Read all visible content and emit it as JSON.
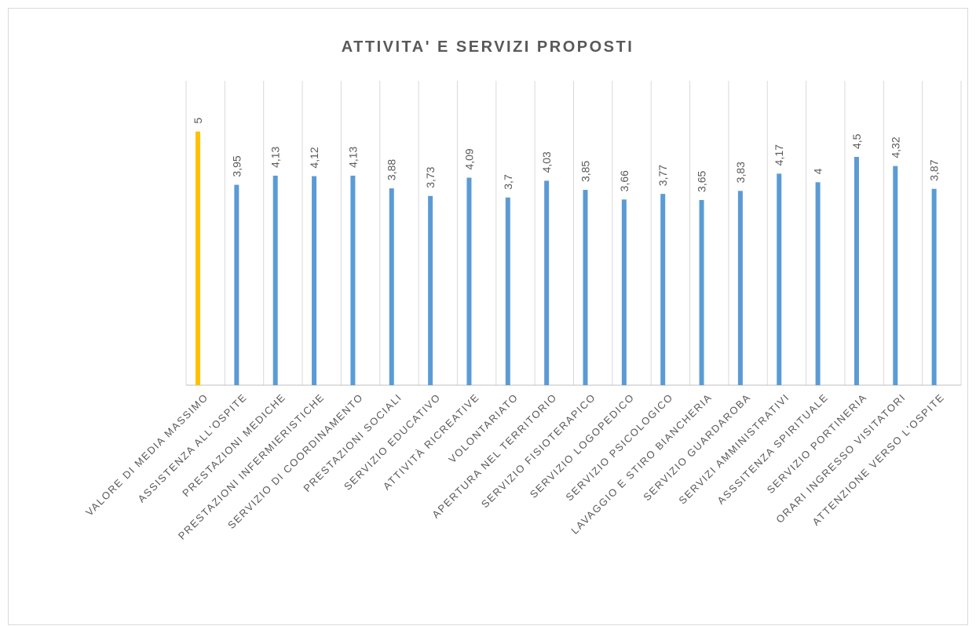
{
  "chart_data": {
    "type": "bar",
    "title": "ATTIVITA' E SERVIZI PROPOSTI",
    "categories": [
      "VALORE DI MEDIA MASSIMO",
      "ASSISTENZA ALL'OSPITE",
      "PRESTAZIONI MEDICHE",
      "PRESTAZIONI INFERMIERISTICHE",
      "SERVIZIO DI COORDINAMENTO",
      "PRESTAZIONI SOCIALI",
      "SERVIZIO EDUCATIVO",
      "ATTIVITÀ RICREATIVE",
      "VOLONTARIATO",
      "APERTURA NEL TERRITORIO",
      "SERVIZIO FISIOTERAPICO",
      "SERVIZIO LOGOPEDICO",
      "SERVIZIO PSICOLOGICO",
      "LAVAGGIO E STIRO BIANCHERIA",
      "SERVIZIO GUARDAROBA",
      "SERVIZI AMMINISTRATIVI",
      "ASSSITENZA SPIRITUALE",
      "SERVIZIO PORTINERIA",
      "ORARI INGRESSO VISITATORI",
      "ATTENZIONE VERSO L'OSPITE"
    ],
    "values": [
      5,
      3.95,
      4.13,
      4.12,
      4.13,
      3.88,
      3.73,
      4.09,
      3.7,
      4.03,
      3.85,
      3.66,
      3.77,
      3.65,
      3.83,
      4.17,
      4,
      4.5,
      4.32,
      3.87
    ],
    "value_labels": [
      "5",
      "3,95",
      "4,13",
      "4,12",
      "4,13",
      "3,88",
      "3,73",
      "4,09",
      "3,7",
      "4,03",
      "3,85",
      "3,66",
      "3,77",
      "3,65",
      "3,83",
      "4,17",
      "4",
      "4,5",
      "4,32",
      "3,87"
    ],
    "colors": [
      "#ffc000",
      "#5b9bd5",
      "#5b9bd5",
      "#5b9bd5",
      "#5b9bd5",
      "#5b9bd5",
      "#5b9bd5",
      "#5b9bd5",
      "#5b9bd5",
      "#5b9bd5",
      "#5b9bd5",
      "#5b9bd5",
      "#5b9bd5",
      "#5b9bd5",
      "#5b9bd5",
      "#5b9bd5",
      "#5b9bd5",
      "#5b9bd5",
      "#5b9bd5",
      "#5b9bd5"
    ],
    "ylim": [
      0,
      6
    ]
  }
}
